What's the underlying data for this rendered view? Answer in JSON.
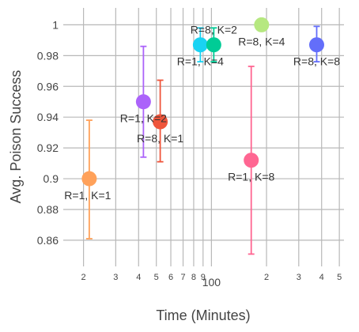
{
  "chart_data": {
    "type": "scatter",
    "title": "",
    "xlabel": "Time (Minutes)",
    "ylabel": "Avg. Poison Success",
    "x_scale": "log",
    "xlim": [
      15.5,
      530
    ],
    "ylim": [
      0.843,
      1.011
    ],
    "grid": true,
    "x_tick_labels": [
      {
        "value": 20,
        "label": "2"
      },
      {
        "value": 30,
        "label": "3"
      },
      {
        "value": 40,
        "label": "4"
      },
      {
        "value": 50,
        "label": "5"
      },
      {
        "value": 60,
        "label": "6"
      },
      {
        "value": 70,
        "label": "7"
      },
      {
        "value": 80,
        "label": "8"
      },
      {
        "value": 90,
        "label": "9"
      },
      {
        "value": 100,
        "label": "100"
      },
      {
        "value": 200,
        "label": "2"
      },
      {
        "value": 300,
        "label": "3"
      },
      {
        "value": 400,
        "label": "4"
      },
      {
        "value": 500,
        "label": "5"
      }
    ],
    "y_tick_labels": [
      {
        "value": 0.86,
        "label": "0.86"
      },
      {
        "value": 0.88,
        "label": "0.88"
      },
      {
        "value": 0.9,
        "label": "0.9"
      },
      {
        "value": 0.92,
        "label": "0.92"
      },
      {
        "value": 0.94,
        "label": "0.94"
      },
      {
        "value": 0.96,
        "label": "0.96"
      },
      {
        "value": 0.98,
        "label": "0.98"
      },
      {
        "value": 1.0,
        "label": "1"
      }
    ],
    "points": [
      {
        "label": "R=1, K=1",
        "x": 21.5,
        "y": 0.9,
        "err_low": 0.861,
        "err_high": 0.938,
        "color": "#ffa15a",
        "label_pos": "below-left"
      },
      {
        "label": "R=1, K=2",
        "x": 42.5,
        "y": 0.95,
        "err_low": 0.914,
        "err_high": 0.986,
        "color": "#ab63fa",
        "label_pos": "below"
      },
      {
        "label": "R=8, K=1",
        "x": 52.5,
        "y": 0.937,
        "err_low": 0.911,
        "err_high": 0.964,
        "color": "#ef553b",
        "label_pos": "below"
      },
      {
        "label": "R=1, K=4",
        "x": 87,
        "y": 0.987,
        "err_low": 0.976,
        "err_high": 0.998,
        "color": "#19d3f3",
        "label_pos": "below"
      },
      {
        "label": "R=8, K=2",
        "x": 103,
        "y": 0.987,
        "err_low": 0.976,
        "err_high": 0.998,
        "color": "#00cc96",
        "label_pos": "above"
      },
      {
        "label": "R=1, K=8",
        "x": 165,
        "y": 0.912,
        "err_low": 0.851,
        "err_high": 0.973,
        "color": "#ff6692",
        "label_pos": "below"
      },
      {
        "label": "R=8, K=4",
        "x": 188,
        "y": 1.0,
        "err_low": 1.0,
        "err_high": 1.0,
        "color": "#b6e880",
        "label_pos": "below"
      },
      {
        "label": "R=8, K=8",
        "x": 376,
        "y": 0.987,
        "err_low": 0.976,
        "err_high": 0.999,
        "color": "#636efa",
        "label_pos": "below"
      }
    ]
  }
}
